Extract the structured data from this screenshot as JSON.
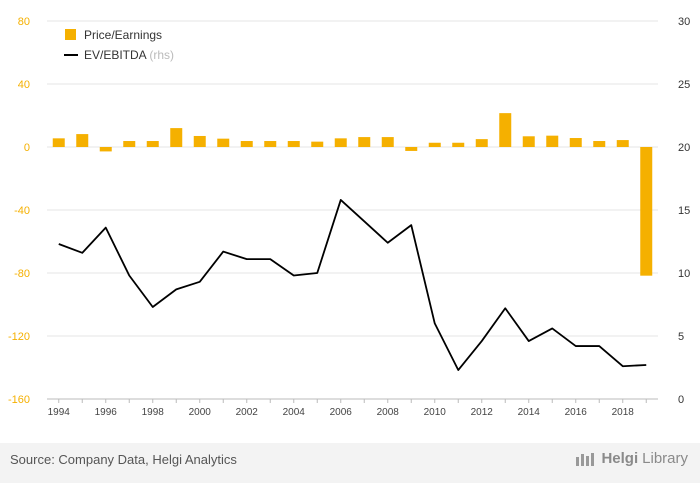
{
  "chart_data": {
    "type": "bar+line",
    "x": [
      "1994",
      "1995",
      "1996",
      "1997",
      "1998",
      "1999",
      "2000",
      "2001",
      "2002",
      "2003",
      "2004",
      "2005",
      "2006",
      "2007",
      "2008",
      "2009",
      "2010",
      "2011",
      "2012",
      "2013",
      "2014",
      "2015",
      "2016",
      "2017",
      "2018",
      "2019"
    ],
    "x_tick_labels": [
      "1994",
      "1996",
      "1998",
      "2000",
      "2002",
      "2004",
      "2006",
      "2008",
      "2010",
      "2012",
      "2014",
      "2016",
      "2018"
    ],
    "series": [
      {
        "name": "Price/Earnings",
        "type": "bar",
        "axis": "left",
        "color": "#f5b000",
        "values": [
          5.5,
          8.2,
          -2.8,
          3.8,
          3.8,
          12.0,
          7.0,
          5.3,
          3.8,
          3.8,
          3.8,
          3.4,
          5.5,
          6.3,
          6.3,
          -2.5,
          2.7,
          2.7,
          5.0,
          21.5,
          6.8,
          7.2,
          5.7,
          3.8,
          4.4,
          -81.7
        ]
      },
      {
        "name": "EV/EBITDA",
        "type": "line",
        "axis": "right",
        "color": "#000000",
        "values": [
          12.3,
          11.6,
          13.6,
          9.8,
          7.3,
          8.7,
          9.3,
          11.7,
          11.1,
          11.1,
          9.8,
          10.0,
          15.8,
          14.1,
          12.4,
          13.8,
          6.0,
          2.3,
          4.6,
          7.2,
          4.6,
          5.6,
          4.2,
          4.2,
          2.6,
          2.7
        ]
      }
    ],
    "legend": {
      "placement": "top-left",
      "entries": [
        "Price/Earnings",
        "EV/EBITDA"
      ],
      "rhs_note": "(rhs)"
    },
    "y_left": {
      "ylim": [
        -160,
        80
      ],
      "ticks": [
        "80",
        "40",
        "0",
        "-40",
        "-80",
        "-120",
        "-160"
      ],
      "tick_values": [
        80,
        40,
        0,
        -40,
        -80,
        -120,
        -160
      ],
      "color": "#f5b000"
    },
    "y_right": {
      "ylim": [
        0,
        30
      ],
      "ticks": [
        "30",
        "25",
        "20",
        "15",
        "10",
        "5",
        "0"
      ],
      "tick_values": [
        30,
        25,
        20,
        15,
        10,
        5,
        0
      ]
    },
    "grid": true
  },
  "footer": {
    "source": "Source: Company Data, Helgi Analytics",
    "brand_bold": "Helgi",
    "brand_thin": "Library"
  }
}
